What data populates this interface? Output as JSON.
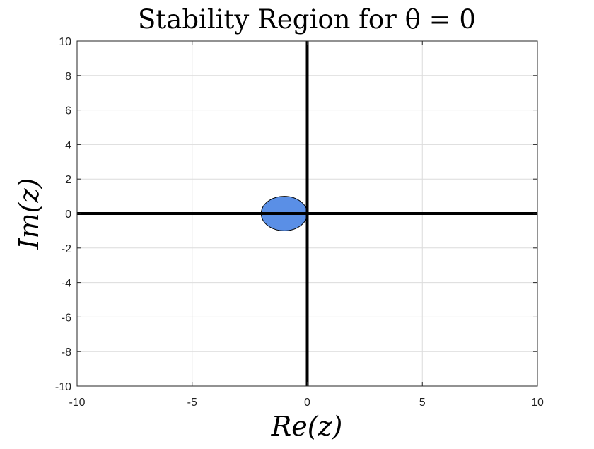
{
  "chart_data": {
    "type": "area",
    "title": "Stability Region for θ = 0",
    "xlabel": "Re(z)",
    "ylabel": "Im(z)",
    "xlim": [
      -10,
      10
    ],
    "ylim": [
      -10,
      10
    ],
    "xticks": [
      -10,
      -5,
      0,
      5,
      10
    ],
    "yticks": [
      -10,
      -8,
      -6,
      -4,
      -2,
      0,
      2,
      4,
      6,
      8,
      10
    ],
    "xtick_labels": [
      "-10",
      "-5",
      "0",
      "5",
      "10"
    ],
    "ytick_labels": [
      "-10",
      "-8",
      "-6",
      "-4",
      "-2",
      "0",
      "2",
      "4",
      "6",
      "8",
      "10"
    ],
    "grid": true,
    "regions": [
      {
        "shape": "circle",
        "center": [
          -1,
          0
        ],
        "radius": 1,
        "fill": "#5A8FE6",
        "edge": "#000000"
      }
    ],
    "axis_lines": {
      "x": 0,
      "y": 0,
      "color": "#000000"
    }
  }
}
